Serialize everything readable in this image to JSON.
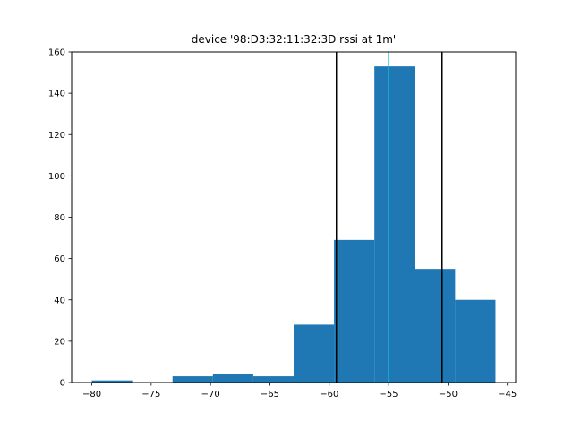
{
  "chart_data": {
    "type": "histogram",
    "title": "device '98:D3:32:11:32:3D rssi at 1m'",
    "xlabel": "",
    "ylabel": "",
    "xlim": [
      -81.7,
      -44.3
    ],
    "ylim": [
      0,
      160
    ],
    "xticks": [
      -80,
      -75,
      -70,
      -65,
      -60,
      -55,
      -50,
      -45
    ],
    "xtick_labels": [
      "−80",
      "−75",
      "−70",
      "−65",
      "−60",
      "−55",
      "−50",
      "−45"
    ],
    "yticks": [
      0,
      20,
      40,
      60,
      80,
      100,
      120,
      140,
      160
    ],
    "ytick_labels": [
      "0",
      "20",
      "40",
      "60",
      "80",
      "100",
      "120",
      "140",
      "160"
    ],
    "bins": [
      {
        "x0": -80.0,
        "x1": -76.6,
        "count": 1
      },
      {
        "x0": -76.6,
        "x1": -73.2,
        "count": 0
      },
      {
        "x0": -73.2,
        "x1": -69.8,
        "count": 3
      },
      {
        "x0": -69.8,
        "x1": -66.4,
        "count": 4
      },
      {
        "x0": -66.4,
        "x1": -63.0,
        "count": 3
      },
      {
        "x0": -63.0,
        "x1": -59.6,
        "count": 28
      },
      {
        "x0": -59.6,
        "x1": -56.2,
        "count": 69
      },
      {
        "x0": -56.2,
        "x1": -52.8,
        "count": 153
      },
      {
        "x0": -52.8,
        "x1": -49.4,
        "count": 55
      },
      {
        "x0": -49.4,
        "x1": -46.0,
        "count": 40
      }
    ],
    "vlines": [
      {
        "x": -59.4,
        "color": "#000000"
      },
      {
        "x": -55.0,
        "color": "#17becf"
      },
      {
        "x": -50.5,
        "color": "#000000"
      }
    ],
    "bar_color": "#1f77b4",
    "grid": false
  }
}
